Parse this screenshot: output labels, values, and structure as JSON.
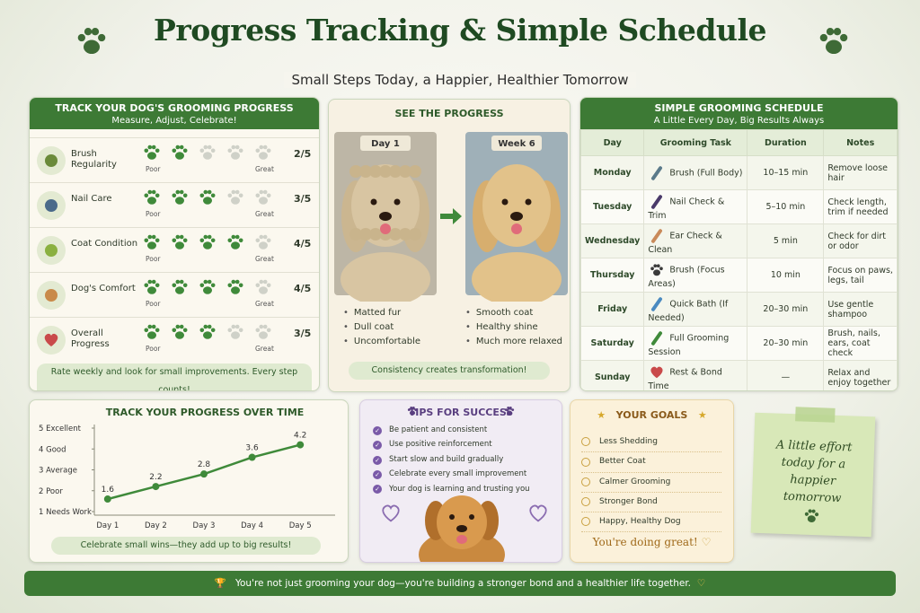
{
  "header": {
    "title": "Progress Tracking & Simple Schedule",
    "subtitle": "Small Steps Today, a Happier, Healthier Tomorrow"
  },
  "tracker": {
    "title": "TRACK YOUR DOG'S GROOMING PROGRESS",
    "subtitle": "Measure, Adjust, Celebrate!",
    "scale_min_label": "Poor",
    "scale_max_label": "Great",
    "scale_max": 5,
    "rows": [
      {
        "label": "Brush Regularity",
        "score": 2,
        "score_label": "2/5"
      },
      {
        "label": "Nail Care",
        "score": 3,
        "score_label": "3/5"
      },
      {
        "label": "Coat Condition",
        "score": 4,
        "score_label": "4/5"
      },
      {
        "label": "Dog's Comfort",
        "score": 4,
        "score_label": "4/5"
      },
      {
        "label": "Overall Progress",
        "score": 3,
        "score_label": "3/5"
      }
    ],
    "footer": "Rate weekly and look for small improvements. Every step counts!"
  },
  "progress": {
    "title": "SEE THE PROGRESS",
    "before": {
      "label": "Day 1",
      "points": [
        "Matted fur",
        "Dull coat",
        "Uncomfortable"
      ]
    },
    "after": {
      "label": "Week 6",
      "points": [
        "Smooth coat",
        "Healthy shine",
        "Much more relaxed"
      ]
    },
    "footer": "Consistency creates transformation!"
  },
  "schedule": {
    "title": "SIMPLE GROOMING SCHEDULE",
    "subtitle": "A Little Every Day, Big Results Always",
    "columns": [
      "Day",
      "Grooming Task",
      "Duration",
      "Notes"
    ],
    "rows": [
      {
        "day": "Monday",
        "task": "Brush (Full Body)",
        "duration": "10–15 min",
        "notes": "Remove loose hair"
      },
      {
        "day": "Tuesday",
        "task": "Nail Check & Trim",
        "duration": "5–10 min",
        "notes": "Check length, trim if needed"
      },
      {
        "day": "Wednesday",
        "task": "Ear Check & Clean",
        "duration": "5 min",
        "notes": "Check for dirt or odor"
      },
      {
        "day": "Thursday",
        "task": "Brush (Focus Areas)",
        "duration": "10 min",
        "notes": "Focus on paws, legs, tail"
      },
      {
        "day": "Friday",
        "task": "Quick Bath (If Needed)",
        "duration": "20–30 min",
        "notes": "Use gentle shampoo"
      },
      {
        "day": "Saturday",
        "task": "Full Grooming Session",
        "duration": "20–30 min",
        "notes": "Brush, nails, ears, coat check"
      },
      {
        "day": "Sunday",
        "task": "Rest & Bond Time",
        "duration": "—",
        "notes": "Relax and enjoy together"
      }
    ]
  },
  "chart_data": {
    "type": "line",
    "title": "TRACK YOUR PROGRESS OVER TIME",
    "categories": [
      "Day 1",
      "Day 2",
      "Day 3",
      "Day 4",
      "Day 5"
    ],
    "values": [
      1.6,
      2.2,
      2.8,
      3.6,
      4.2
    ],
    "color": "#3f8a3a",
    "ylim": [
      1,
      5
    ],
    "yticks": [
      {
        "value": 1,
        "label": "1 Needs Work"
      },
      {
        "value": 2,
        "label": "2 Poor"
      },
      {
        "value": 3,
        "label": "3 Average"
      },
      {
        "value": 4,
        "label": "4 Good"
      },
      {
        "value": 5,
        "label": "5 Excellent"
      }
    ],
    "footer": "Celebrate small wins—they add up to big results!"
  },
  "tips": {
    "title": "TIPS FOR SUCCESS",
    "items": [
      "Be patient and consistent",
      "Use positive reinforcement",
      "Start slow and build gradually",
      "Celebrate every small improvement",
      "Your dog is learning and trusting you"
    ]
  },
  "goals": {
    "title": "YOUR GOALS",
    "items": [
      "Less Shedding",
      "Better Coat",
      "Calmer Grooming",
      "Stronger Bond",
      "Happy, Healthy Dog"
    ],
    "footer": "You're doing great!"
  },
  "note": "A little effort today for a happier tomorrow",
  "banner": "You're not just grooming your dog—you're building a stronger bond and a healthier life together."
}
